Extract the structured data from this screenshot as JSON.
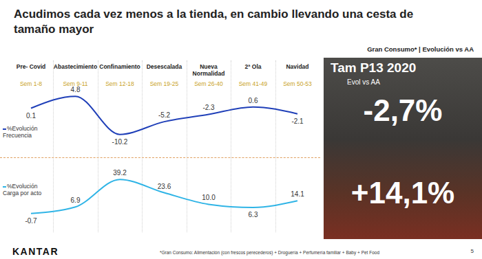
{
  "title": "Acudimos cada vez menos a la tienda, en cambio llevando una cesta de tamaño mayor",
  "header": "Gran Consumo* | Evolución vs AA",
  "periods": [
    "Sem 1-8",
    "Sem 9-11",
    "Sem 12-18",
    "Sem 19-25",
    "Sem 26-40",
    "Sem 41-49",
    "Sem 50-53"
  ],
  "chart_data": [
    {
      "type": "line",
      "categories": [
        "Pre- Covid",
        "Abastecimiento",
        "Confinamiento",
        "Desescalada",
        "Nueva Normalidad",
        "2ª Ola",
        "Navidad"
      ],
      "series": [
        {
          "name": "%Evolución Frecuencia",
          "color": "#1f3fb8",
          "values": [
            0.1,
            4.8,
            -10.2,
            -5.2,
            -2.3,
            0.6,
            -2.1
          ]
        }
      ],
      "ylim": [
        -13,
        7
      ],
      "data_labels": true,
      "tick_labels": false
    },
    {
      "type": "line",
      "categories": [
        "Pre- Covid",
        "Abastecimiento",
        "Confinamiento",
        "Desescalada",
        "Nueva Normalidad",
        "2ª Ola",
        "Navidad"
      ],
      "series": [
        {
          "name": "%Evolución Carga por acto",
          "color": "#2fb4e6",
          "values": [
            -0.7,
            6.9,
            39.2,
            23.6,
            10.0,
            6.3,
            14.1
          ],
          "value_labels": [
            "-0.7",
            "6.9",
            "39.2",
            "23.6",
            "10.0",
            "6.3",
            "14.1"
          ]
        }
      ],
      "ylim": [
        -5,
        45
      ],
      "data_labels": true,
      "tick_labels": false
    }
  ],
  "panel": {
    "title": "Tam P13 2020",
    "subtitle": "Evol vs AA",
    "values": [
      "-2,7%",
      "+14,1%"
    ]
  },
  "footnote": "*Gran Consumo: Alimentación (con frescos perecederos) + Droguería + Perfumería familiar + Baby + Pet Food",
  "brand": "KANTAR",
  "page": "5"
}
